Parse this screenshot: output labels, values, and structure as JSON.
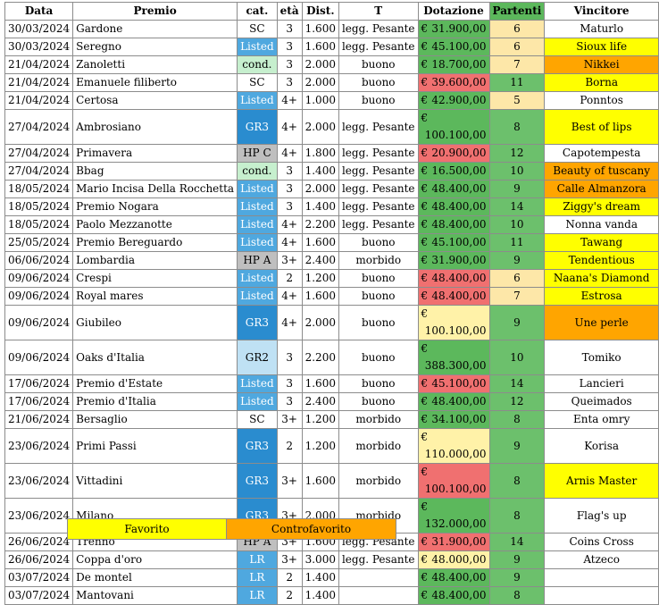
{
  "headers": {
    "data": "Data",
    "premio": "Premio",
    "cat": "cat.",
    "eta": "età",
    "dist": "Dist.",
    "t": "T",
    "dotazione": "Dotazione",
    "partenti": "Partenti",
    "vincitore": "Vincitore"
  },
  "colors": {
    "cat_sc": "#ffffff",
    "cat_listed": "#4fa8df",
    "cat_cond": "#c6efce",
    "cat_gr3": "#2a8ccf",
    "cat_gr2": "#bfe1f4",
    "cat_hp": "#bfbfbf",
    "cat_lr": "#4fa8df",
    "dot_green": "#5cb85c",
    "dot_red": "#f07070",
    "dot_yellow": "#fff2a8",
    "part_green": "#6cc06c",
    "part_light": "#fde7a8",
    "favorito": "#ffff00",
    "controfavorito": "#ffa500",
    "none": "#ffffff"
  },
  "currency": "€",
  "rows": [
    {
      "data": "30/03/2024",
      "premio": "Gardone",
      "cat": "SC",
      "cat_color": "cat_sc",
      "eta": "3",
      "dist": "1.600",
      "t": "legg. Pesante",
      "dot": "31.900,00",
      "dot_color": "dot_green",
      "part": "6",
      "part_color": "part_light",
      "vincitore": "Maturlo",
      "win_color": "none"
    },
    {
      "data": "30/03/2024",
      "premio": "Seregno",
      "cat": "Listed",
      "cat_color": "cat_listed",
      "eta": "3",
      "dist": "1.600",
      "t": "legg. Pesante",
      "dot": "45.100,00",
      "dot_color": "dot_green",
      "part": "6",
      "part_color": "part_light",
      "vincitore": "Sioux life",
      "win_color": "favorito"
    },
    {
      "data": "21/04/2024",
      "premio": "Zanoletti",
      "cat": "cond.",
      "cat_color": "cat_cond",
      "eta": "3",
      "dist": "2.000",
      "t": "buono",
      "dot": "18.700,00",
      "dot_color": "dot_green",
      "part": "7",
      "part_color": "part_light",
      "vincitore": "Nikkei",
      "win_color": "controfavorito"
    },
    {
      "data": "21/04/2024",
      "premio": "Emanuele filiberto",
      "cat": "SC",
      "cat_color": "cat_sc",
      "eta": "3",
      "dist": "2.000",
      "t": "buono",
      "dot": "39.600,00",
      "dot_color": "dot_red",
      "part": "11",
      "part_color": "part_green",
      "vincitore": "Borna",
      "win_color": "favorito"
    },
    {
      "data": "21/04/2024",
      "premio": "Certosa",
      "cat": "Listed",
      "cat_color": "cat_listed",
      "eta": "4+",
      "dist": "1.000",
      "t": "buono",
      "dot": "42.900,00",
      "dot_color": "dot_green",
      "part": "5",
      "part_color": "part_light",
      "vincitore": "Ponntos",
      "win_color": "none"
    },
    {
      "data": "27/04/2024",
      "premio": "Ambrosiano",
      "cat": "GR3",
      "cat_color": "cat_gr3",
      "eta": "4+",
      "dist": "2.000",
      "t": "legg. Pesante",
      "dot": "100.100,00",
      "dot_color": "dot_green",
      "part": "8",
      "part_color": "part_green",
      "vincitore": "Best of lips",
      "win_color": "favorito"
    },
    {
      "data": "27/04/2024",
      "premio": "Primavera",
      "cat": "HP C",
      "cat_color": "cat_hp",
      "eta": "4+",
      "dist": "1.800",
      "t": "legg. Pesante",
      "dot": "20.900,00",
      "dot_color": "dot_red",
      "part": "12",
      "part_color": "part_green",
      "vincitore": "Capotempesta",
      "win_color": "none"
    },
    {
      "data": "27/04/2024",
      "premio": "Bbag",
      "cat": "cond.",
      "cat_color": "cat_cond",
      "eta": "3",
      "dist": "1.400",
      "t": "legg. Pesante",
      "dot": "16.500,00",
      "dot_color": "dot_green",
      "part": "10",
      "part_color": "part_green",
      "vincitore": "Beauty of tuscany",
      "win_color": "controfavorito"
    },
    {
      "data": "18/05/2024",
      "premio": "Mario Incisa Della Rocchetta",
      "cat": "Listed",
      "cat_color": "cat_listed",
      "eta": "3",
      "dist": "2.000",
      "t": "legg. Pesante",
      "dot": "48.400,00",
      "dot_color": "dot_green",
      "part": "9",
      "part_color": "part_green",
      "vincitore": "Calle Almanzora",
      "win_color": "controfavorito"
    },
    {
      "data": "18/05/2024",
      "premio": "Premio Nogara",
      "cat": "Listed",
      "cat_color": "cat_listed",
      "eta": "3",
      "dist": "1.400",
      "t": "legg. Pesante",
      "dot": "48.400,00",
      "dot_color": "dot_green",
      "part": "14",
      "part_color": "part_green",
      "vincitore": "Ziggy's dream",
      "win_color": "favorito"
    },
    {
      "data": "18/05/2024",
      "premio": "Paolo Mezzanotte",
      "cat": "Listed",
      "cat_color": "cat_listed",
      "eta": "4+",
      "dist": "2.200",
      "t": "legg. Pesante",
      "dot": "48.400,00",
      "dot_color": "dot_green",
      "part": "10",
      "part_color": "part_green",
      "vincitore": "Nonna vanda",
      "win_color": "none"
    },
    {
      "data": "25/05/2024",
      "premio": "Premio Bereguardo",
      "cat": "Listed",
      "cat_color": "cat_listed",
      "eta": "4+",
      "dist": "1.600",
      "t": "buono",
      "dot": "45.100,00",
      "dot_color": "dot_green",
      "part": "11",
      "part_color": "part_green",
      "vincitore": "Tawang",
      "win_color": "favorito"
    },
    {
      "data": "06/06/2024",
      "premio": "Lombardia",
      "cat": "HP A",
      "cat_color": "cat_hp",
      "eta": "3+",
      "dist": "2.400",
      "t": "morbido",
      "dot": "31.900,00",
      "dot_color": "dot_green",
      "part": "9",
      "part_color": "part_green",
      "vincitore": "Tendentious",
      "win_color": "favorito"
    },
    {
      "data": "09/06/2024",
      "premio": "Crespi",
      "cat": "Listed",
      "cat_color": "cat_listed",
      "eta": "2",
      "dist": "1.200",
      "t": "buono",
      "dot": "48.400,00",
      "dot_color": "dot_red",
      "part": "6",
      "part_color": "part_light",
      "vincitore": "Naana's Diamond",
      "win_color": "favorito"
    },
    {
      "data": "09/06/2024",
      "premio": "Royal mares",
      "cat": "Listed",
      "cat_color": "cat_listed",
      "eta": "4+",
      "dist": "1.600",
      "t": "buono",
      "dot": "48.400,00",
      "dot_color": "dot_red",
      "part": "7",
      "part_color": "part_light",
      "vincitore": "Estrosa",
      "win_color": "favorito"
    },
    {
      "data": "09/06/2024",
      "premio": "Giubileo",
      "cat": "GR3",
      "cat_color": "cat_gr3",
      "eta": "4+",
      "dist": "2.000",
      "t": "buono",
      "dot": "100.100,00",
      "dot_color": "dot_yellow",
      "part": "9",
      "part_color": "part_green",
      "vincitore": "Une perle",
      "win_color": "controfavorito"
    },
    {
      "data": "09/06/2024",
      "premio": "Oaks d'Italia",
      "cat": "GR2",
      "cat_color": "cat_gr2",
      "eta": "3",
      "dist": "2.200",
      "t": "buono",
      "dot": "388.300,00",
      "dot_color": "dot_green",
      "part": "10",
      "part_color": "part_green",
      "vincitore": "Tomiko",
      "win_color": "none"
    },
    {
      "data": "17/06/2024",
      "premio": "Premio d'Estate",
      "cat": "Listed",
      "cat_color": "cat_listed",
      "eta": "3",
      "dist": "1.600",
      "t": "buono",
      "dot": "45.100,00",
      "dot_color": "dot_red",
      "part": "14",
      "part_color": "part_green",
      "vincitore": "Lancieri",
      "win_color": "none"
    },
    {
      "data": "17/06/2024",
      "premio": "Premio d'Italia",
      "cat": "Listed",
      "cat_color": "cat_listed",
      "eta": "3",
      "dist": "2.400",
      "t": "buono",
      "dot": "48.400,00",
      "dot_color": "dot_green",
      "part": "12",
      "part_color": "part_green",
      "vincitore": "Queimados",
      "win_color": "none"
    },
    {
      "data": "21/06/2024",
      "premio": "Bersaglio",
      "cat": "SC",
      "cat_color": "cat_sc",
      "eta": "3+",
      "dist": "1.200",
      "t": "morbido",
      "dot": "34.100,00",
      "dot_color": "dot_green",
      "part": "8",
      "part_color": "part_green",
      "vincitore": "Enta omry",
      "win_color": "none"
    },
    {
      "data": "23/06/2024",
      "premio": "Primi Passi",
      "cat": "GR3",
      "cat_color": "cat_gr3",
      "eta": "2",
      "dist": "1.200",
      "t": "morbido",
      "dot": "110.000,00",
      "dot_color": "dot_yellow",
      "part": "9",
      "part_color": "part_green",
      "vincitore": "Korisa",
      "win_color": "none"
    },
    {
      "data": "23/06/2024",
      "premio": "Vittadini",
      "cat": "GR3",
      "cat_color": "cat_gr3",
      "eta": "3+",
      "dist": "1.600",
      "t": "morbido",
      "dot": "100.100,00",
      "dot_color": "dot_red",
      "part": "8",
      "part_color": "part_green",
      "vincitore": "Arnis Master",
      "win_color": "favorito"
    },
    {
      "data": "23/06/2024",
      "premio": "Milano",
      "cat": "GR3",
      "cat_color": "cat_gr3",
      "eta": "3+",
      "dist": "2.000",
      "t": "morbido",
      "dot": "132.000,00",
      "dot_color": "dot_green",
      "part": "8",
      "part_color": "part_green",
      "vincitore": "Flag's up",
      "win_color": "none"
    },
    {
      "data": "26/06/2024",
      "premio": "Trenno",
      "cat": "HP A",
      "cat_color": "cat_hp",
      "eta": "3+",
      "dist": "1.600",
      "t": "legg. Pesante",
      "dot": "31.900,00",
      "dot_color": "dot_red",
      "part": "14",
      "part_color": "part_green",
      "vincitore": "Coins Cross",
      "win_color": "none"
    },
    {
      "data": "26/06/2024",
      "premio": "Coppa d'oro",
      "cat": "LR",
      "cat_color": "cat_lr",
      "eta": "3+",
      "dist": "3.000",
      "t": "legg. Pesante",
      "dot": "48.000,00",
      "dot_color": "dot_yellow",
      "part": "9",
      "part_color": "part_green",
      "vincitore": "Atzeco",
      "win_color": "none"
    },
    {
      "data": "03/07/2024",
      "premio": "De montel",
      "cat": "LR",
      "cat_color": "cat_lr",
      "eta": "2",
      "dist": "1.400",
      "t": "",
      "dot": "48.400,00",
      "dot_color": "dot_green",
      "part": "9",
      "part_color": "part_green",
      "vincitore": "",
      "win_color": "none"
    },
    {
      "data": "03/07/2024",
      "premio": "Mantovani",
      "cat": "LR",
      "cat_color": "cat_lr",
      "eta": "2",
      "dist": "1.400",
      "t": "",
      "dot": "48.400,00",
      "dot_color": "dot_green",
      "part": "8",
      "part_color": "part_green",
      "vincitore": "",
      "win_color": "none"
    }
  ],
  "legend": {
    "favorito": "Favorito",
    "controfavorito": "Controfavorito"
  }
}
